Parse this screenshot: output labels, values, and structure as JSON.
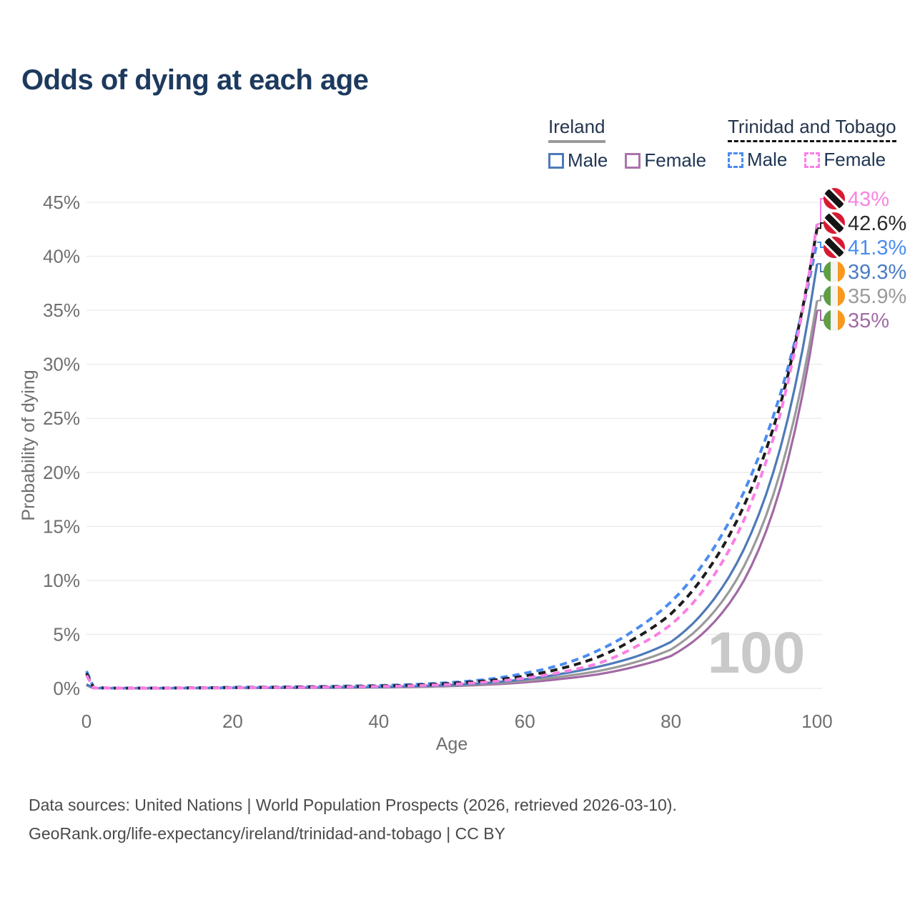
{
  "header": {
    "title": "Odds of dying at each age"
  },
  "legend": {
    "groups": [
      {
        "id": "ireland",
        "title": "Ireland",
        "underline_style": "solid",
        "underline_color": "#9a9a9a",
        "items": [
          {
            "label": "Male",
            "color": "#4d7ab8",
            "dash": false
          },
          {
            "label": "Female",
            "color": "#ab74ab",
            "dash": false
          }
        ]
      },
      {
        "id": "trinidad-and-tobago",
        "title": "Trinidad and Tobago",
        "underline_style": "dashed",
        "underline_color": "#111111",
        "items": [
          {
            "label": "Male",
            "color": "#4a8cf0",
            "dash": true
          },
          {
            "label": "Female",
            "color": "#f97fe4",
            "dash": true
          }
        ]
      }
    ]
  },
  "chart_data": {
    "type": "line",
    "title": "Odds of dying at each age",
    "xlabel": "Age",
    "ylabel": "Probability of dying",
    "xlim": [
      0,
      100
    ],
    "ylim_percent": [
      0,
      45
    ],
    "grid": "horizontal",
    "legend_position": "top-right",
    "watermark": "100",
    "x_ticks": [
      {
        "v": 0,
        "label": "0"
      },
      {
        "v": 20,
        "label": "20"
      },
      {
        "v": 40,
        "label": "40"
      },
      {
        "v": 60,
        "label": "60"
      },
      {
        "v": 80,
        "label": "80"
      },
      {
        "v": 100,
        "label": "100"
      }
    ],
    "y_ticks": [
      {
        "v": 0,
        "label": "0%"
      },
      {
        "v": 5,
        "label": "5%"
      },
      {
        "v": 10,
        "label": "10%"
      },
      {
        "v": 15,
        "label": "15%"
      },
      {
        "v": 20,
        "label": "20%"
      },
      {
        "v": 25,
        "label": "25%"
      },
      {
        "v": 30,
        "label": "30%"
      },
      {
        "v": 35,
        "label": "35%"
      },
      {
        "v": 40,
        "label": "40%"
      },
      {
        "v": 45,
        "label": "45%"
      }
    ],
    "ages": [
      0,
      1,
      5,
      10,
      15,
      20,
      25,
      30,
      35,
      40,
      45,
      50,
      55,
      60,
      65,
      70,
      75,
      80,
      85,
      90,
      95,
      100
    ],
    "series": [
      {
        "name": "Trinidad and Tobago Female",
        "country": "Trinidad and Tobago",
        "sex": "Female",
        "flag": "tt",
        "color": "#f97fe4",
        "label_color": "#f884e4",
        "dash": true,
        "end_label": "43%",
        "values_pct": [
          1.2,
          0.04,
          0.02,
          0.02,
          0.04,
          0.06,
          0.08,
          0.1,
          0.14,
          0.18,
          0.25,
          0.38,
          0.6,
          0.95,
          1.5,
          2.3,
          3.8,
          5.9,
          9.6,
          15.6,
          25.5,
          43.0
        ]
      },
      {
        "name": "Trinidad and Tobago Both sexes",
        "country": "Trinidad and Tobago",
        "sex": "Both sexes",
        "flag": "tt",
        "color": "#1c1c1c",
        "label_color": "#2b2b2b",
        "dash": true,
        "end_label": "42.6%",
        "values_pct": [
          1.4,
          0.045,
          0.025,
          0.025,
          0.05,
          0.08,
          0.1,
          0.13,
          0.17,
          0.22,
          0.31,
          0.47,
          0.72,
          1.15,
          1.85,
          2.9,
          4.6,
          6.9,
          10.9,
          16.9,
          26.3,
          42.6
        ]
      },
      {
        "name": "Trinidad and Tobago Male",
        "country": "Trinidad and Tobago",
        "sex": "Male",
        "flag": "tt",
        "color": "#4a8cf0",
        "label_color": "#4a8cf0",
        "dash": true,
        "end_label": "41.3%",
        "values_pct": [
          1.6,
          0.05,
          0.03,
          0.03,
          0.06,
          0.1,
          0.12,
          0.16,
          0.21,
          0.27,
          0.37,
          0.55,
          0.85,
          1.4,
          2.2,
          3.5,
          5.4,
          8.0,
          12.1,
          18.2,
          27.3,
          41.3
        ]
      },
      {
        "name": "Ireland Male",
        "country": "Ireland",
        "sex": "Male",
        "flag": "ie",
        "color": "#4d7ab8",
        "label_color": "#4b7cc4",
        "dash": false,
        "end_label": "39.3%",
        "values_pct": [
          0.38,
          0.025,
          0.012,
          0.012,
          0.03,
          0.05,
          0.06,
          0.07,
          0.09,
          0.13,
          0.2,
          0.32,
          0.52,
          0.85,
          1.35,
          2.0,
          2.9,
          4.3,
          7.5,
          12.9,
          22.3,
          39.3
        ]
      },
      {
        "name": "Ireland Both sexes",
        "country": "Ireland",
        "sex": "Both sexes",
        "flag": "ie",
        "color": "#9a9a9a",
        "label_color": "#9b9b9b",
        "dash": false,
        "end_label": "35.9%",
        "values_pct": [
          0.33,
          0.02,
          0.01,
          0.01,
          0.025,
          0.04,
          0.05,
          0.06,
          0.08,
          0.11,
          0.17,
          0.27,
          0.43,
          0.7,
          1.1,
          1.6,
          2.4,
          3.6,
          6.4,
          11.3,
          20.1,
          35.9
        ]
      },
      {
        "name": "Ireland Female",
        "country": "Ireland",
        "sex": "Female",
        "flag": "ie",
        "color": "#a269a5",
        "label_color": "#a16ba6",
        "dash": false,
        "end_label": "35%",
        "values_pct": [
          0.29,
          0.018,
          0.009,
          0.009,
          0.02,
          0.03,
          0.04,
          0.05,
          0.065,
          0.09,
          0.14,
          0.22,
          0.35,
          0.56,
          0.88,
          1.3,
          2.0,
          3.0,
          5.5,
          10.0,
          18.6,
          35.0
        ]
      }
    ],
    "flag_colors": {
      "tt": {
        "red": "#d61a32",
        "black": "#141414",
        "white": "#ffffff"
      },
      "ie": {
        "green": "#5f9e45",
        "white": "#f4f4f1",
        "orange": "#f9971e"
      }
    },
    "theme": {
      "grid_color": "#ededed",
      "tick_color": "#6f6f6f",
      "watermark_color": "#c9c9c9",
      "title_color": "#1d3a5e"
    }
  },
  "footer": {
    "line1": "Data sources: United Nations | World Population Prospects (2026, retrieved 2026-03-10).",
    "line2": "GeoRank.org/life-expectancy/ireland/trinidad-and-tobago | CC BY"
  }
}
